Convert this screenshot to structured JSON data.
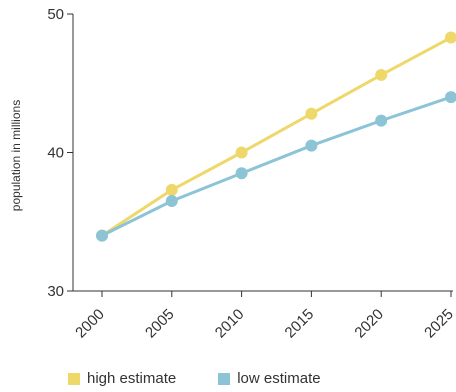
{
  "chart_data": {
    "type": "line",
    "x": [
      2000,
      2005,
      2010,
      2015,
      2020,
      2025
    ],
    "xlim": [
      2000,
      2025
    ],
    "ylim": [
      30,
      50
    ],
    "yticks": [
      30,
      40,
      50
    ],
    "ylabel": "population in millions",
    "xlabel": "",
    "title": "",
    "grid": false,
    "legend_position": "bottom",
    "series": [
      {
        "name": "high estimate",
        "color": "#eed86a",
        "values": [
          34.0,
          37.3,
          40.0,
          42.8,
          45.6,
          48.3
        ]
      },
      {
        "name": "low estimate",
        "color": "#8cc4d6",
        "values": [
          34.0,
          36.5,
          38.5,
          40.5,
          42.3,
          44.0
        ]
      }
    ]
  }
}
